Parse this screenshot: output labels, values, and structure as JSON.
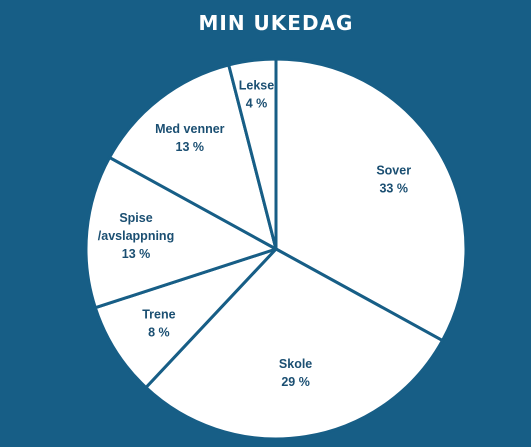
{
  "chart_data": {
    "type": "pie",
    "title": "MIN UKEDAG",
    "slices": [
      {
        "label": "Sover",
        "value": 33,
        "value_label": "33 %"
      },
      {
        "label": "Skole",
        "value": 29,
        "value_label": "29 %"
      },
      {
        "label": "Trene",
        "value": 8,
        "value_label": "8 %"
      },
      {
        "label": "Spise\n/avslappning",
        "value": 13,
        "value_label": "13 %"
      },
      {
        "label": "Med venner",
        "value": 13,
        "value_label": "13 %"
      },
      {
        "label": "Lekse",
        "value": 4,
        "value_label": "4 %"
      }
    ],
    "start": "12 o'clock",
    "direction": "clockwise",
    "slice_color": "#FFFFFF",
    "separator_color": "#175E86",
    "label_color": "#1B4F72",
    "background_color": "#175E86",
    "legend": "none"
  }
}
